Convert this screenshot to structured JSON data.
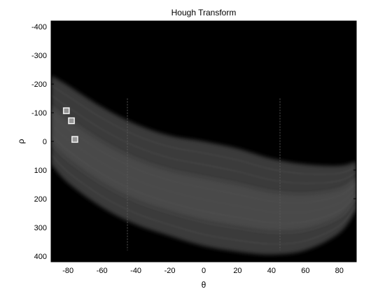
{
  "chart_data": {
    "type": "heatmap",
    "title": "Hough Transform",
    "xlabel": "θ",
    "ylabel": "ρ",
    "xlim": [
      -90,
      90
    ],
    "ylim": [
      -420,
      420
    ],
    "y_reversed": true,
    "x_ticks": [
      -80,
      -60,
      -40,
      -20,
      0,
      20,
      40,
      60,
      80
    ],
    "y_ticks": [
      -400,
      -300,
      -200,
      -100,
      0,
      100,
      200,
      300,
      400
    ],
    "x_tick_labels": [
      "-80",
      "-60",
      "-40",
      "-20",
      "0",
      "20",
      "40",
      "60",
      "80"
    ],
    "y_tick_labels": [
      "-400",
      "-300",
      "-200",
      "-100",
      "0",
      "100",
      "200",
      "300",
      "400"
    ],
    "colormap": "gray",
    "background_color": "#000000",
    "band_upper_edge": [
      [
        -90,
        -230
      ],
      [
        -80,
        -195
      ],
      [
        -60,
        -120
      ],
      [
        -40,
        -60
      ],
      [
        -20,
        -20
      ],
      [
        0,
        0
      ],
      [
        20,
        25
      ],
      [
        40,
        60
      ],
      [
        60,
        80
      ],
      [
        80,
        85
      ],
      [
        90,
        70
      ]
    ],
    "band_lower_edge": [
      [
        -90,
        80
      ],
      [
        -80,
        145
      ],
      [
        -60,
        230
      ],
      [
        -40,
        290
      ],
      [
        -20,
        330
      ],
      [
        0,
        365
      ],
      [
        20,
        385
      ],
      [
        40,
        395
      ],
      [
        60,
        380
      ],
      [
        80,
        320
      ],
      [
        90,
        240
      ]
    ],
    "peaks": [
      {
        "theta": -81,
        "rho": -107
      },
      {
        "theta": -78,
        "rho": -72
      },
      {
        "theta": -76,
        "rho": -7
      }
    ],
    "peak_marker_color": "#ffffff"
  }
}
